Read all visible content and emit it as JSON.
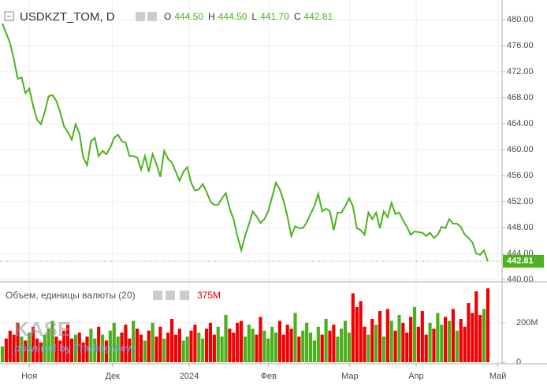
{
  "chart_data": {
    "type": "line",
    "title": "USDKZT_TOM, D",
    "color": "#4cb21f",
    "legend": {
      "labels": [
        "O",
        "H",
        "L",
        "C"
      ],
      "values": [
        444.5,
        444.5,
        441.7,
        442.81
      ],
      "value_labels": [
        "444.50",
        "444.50",
        "441.70",
        "442.81"
      ]
    },
    "values": [
      479.4,
      477.9,
      476.4,
      473.9,
      470.9,
      471.1,
      468.7,
      469.4,
      466.7,
      464.6,
      463.9,
      465.8,
      468.2,
      468.4,
      467.5,
      465.8,
      463.6,
      462.7,
      461.5,
      463.9,
      462.5,
      458.8,
      457.6,
      461.3,
      461.8,
      459.0,
      459.8,
      459.3,
      460.3,
      461.8,
      462.3,
      461.3,
      461.1,
      459.0,
      459.0,
      458.8,
      456.9,
      459.0,
      456.6,
      459.3,
      457.8,
      455.8,
      459.8,
      458.6,
      458.0,
      456.6,
      455.2,
      456.6,
      457.3,
      454.9,
      453.7,
      453.9,
      454.7,
      453.5,
      452.0,
      451.5,
      451.5,
      452.5,
      453.3,
      450.9,
      449.3,
      446.7,
      444.5,
      446.7,
      448.5,
      450.5,
      449.7,
      448.7,
      449.3,
      450.5,
      452.7,
      454.9,
      453.9,
      452.1,
      449.7,
      446.7,
      448.2,
      447.9,
      447.9,
      448.8,
      450.1,
      451.3,
      453.2,
      450.5,
      450.9,
      450.5,
      447.6,
      450.3,
      450.3,
      451.3,
      452.5,
      451.3,
      447.9,
      447.6,
      446.9,
      450.3,
      449.3,
      450.3,
      447.9,
      450.5,
      449.6,
      451.8,
      450.1,
      450.3,
      449.1,
      448.1,
      446.9,
      447.4,
      447.3,
      447.2,
      446.7,
      447.2,
      446.4,
      446.9,
      448.1,
      447.9,
      449.3,
      448.6,
      448.6,
      448.1,
      446.9,
      446.4,
      445.7,
      444.0,
      443.8,
      444.5,
      442.81
    ],
    "ylim": [
      439.76,
      483.03
    ],
    "yticks": [
      {
        "value": 440,
        "label": "440.00"
      },
      {
        "value": 444,
        "label": "444.00"
      },
      {
        "value": 448,
        "label": "448.00"
      },
      {
        "value": 452,
        "label": "452.00"
      },
      {
        "value": 456,
        "label": "456.00"
      },
      {
        "value": 460,
        "label": "460.00"
      },
      {
        "value": 464,
        "label": "464.00"
      },
      {
        "value": 468,
        "label": "468.00"
      },
      {
        "value": 472,
        "label": "472.00"
      },
      {
        "value": 476,
        "label": "476.00"
      },
      {
        "value": 480,
        "label": "480.00"
      }
    ],
    "xlim": [
      -0.61,
      129.7
    ],
    "xticks": [
      {
        "value": 7.0,
        "label": "Ноя"
      },
      {
        "value": 28.6,
        "label": "Дек"
      },
      {
        "value": 48.5,
        "label": "2024"
      },
      {
        "value": 69.1,
        "label": "Фев"
      },
      {
        "value": 90.2,
        "label": "Мар"
      },
      {
        "value": 107.4,
        "label": "Апр"
      },
      {
        "value": 128.6,
        "label": "Май"
      }
    ],
    "volume": {
      "name": "Объем, единицы валюты (20)",
      "last_label": "375M",
      "up_color": "#4caf1c",
      "down_color": "#f00000",
      "values": [
        80000000.0,
        120000000.0,
        160000000.0,
        140000000.0,
        200000000.0,
        130000000.0,
        110000000.0,
        150000000.0,
        180000000.0,
        120000000.0,
        100000000.0,
        140000000.0,
        170000000.0,
        210000000.0,
        130000000.0,
        110000000.0,
        160000000.0,
        190000000.0,
        120000000.0,
        140000000.0,
        150000000.0,
        100000000.0,
        130000000.0,
        170000000.0,
        120000000.0,
        180000000.0,
        140000000.0,
        110000000.0,
        160000000.0,
        200000000.0,
        130000000.0,
        150000000.0,
        190000000.0,
        120000000.0,
        210000000.0,
        170000000.0,
        140000000.0,
        110000000.0,
        160000000.0,
        200000000.0,
        130000000.0,
        180000000.0,
        120000000.0,
        150000000.0,
        220000000.0,
        140000000.0,
        170000000.0,
        110000000.0,
        130000000.0,
        160000000.0,
        190000000.0,
        150000000.0,
        120000000.0,
        170000000.0,
        200000000.0,
        140000000.0,
        180000000.0,
        130000000.0,
        240000000.0,
        170000000.0,
        150000000.0,
        200000000.0,
        210000000.0,
        130000000.0,
        190000000.0,
        170000000.0,
        140000000.0,
        230000000.0,
        160000000.0,
        120000000.0,
        180000000.0,
        150000000.0,
        210000000.0,
        140000000.0,
        190000000.0,
        170000000.0,
        250000000.0,
        130000000.0,
        160000000.0,
        200000000.0,
        150000000.0,
        110000000.0,
        180000000.0,
        140000000.0,
        220000000.0,
        160000000.0,
        190000000.0,
        130000000.0,
        170000000.0,
        210000000.0,
        150000000.0,
        350000000.0,
        280000000.0,
        310000000.0,
        180000000.0,
        140000000.0,
        220000000.0,
        190000000.0,
        260000000.0,
        130000000.0,
        270000000.0,
        210000000.0,
        160000000.0,
        240000000.0,
        200000000.0,
        150000000.0,
        230000000.0,
        280000000.0,
        180000000.0,
        260000000.0,
        140000000.0,
        200000000.0,
        170000000.0,
        250000000.0,
        190000000.0,
        230000000.0,
        210000000.0,
        270000000.0,
        160000000.0,
        220000000.0,
        180000000.0,
        300000000.0,
        250000000.0,
        360000000.0,
        240000000.0,
        270000000.0,
        375000000.0
      ],
      "ylim": [
        -8000000.0,
        408000000.0
      ],
      "yticks": [
        0,
        {
          "value": 200000000.0,
          "label": "200M"
        }
      ]
    },
    "watermark": [
      "KASE",
      "powered by TradingView"
    ]
  }
}
